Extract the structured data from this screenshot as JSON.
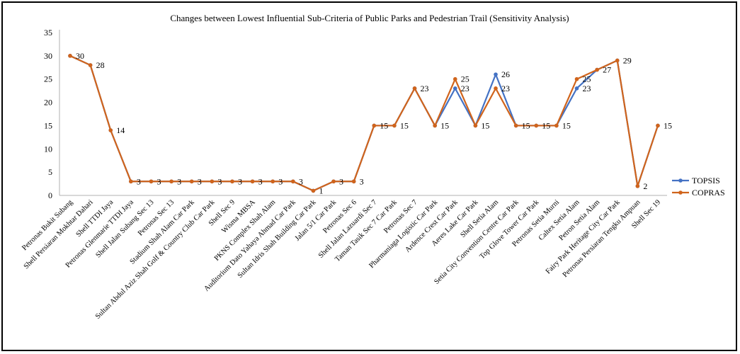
{
  "chart_data": {
    "type": "line",
    "title": "Changes between Lowest Influential Sub-Criteria of Public Parks and Pedestrian Trail (Sensitivity Analysis)",
    "xlabel": "",
    "ylabel": "",
    "ylim": [
      0,
      35
    ],
    "yticks": [
      0,
      5,
      10,
      15,
      20,
      25,
      30,
      35
    ],
    "grid": false,
    "legend_position": "right",
    "categories": [
      "Petronas Bukit Subang",
      "Shell Persiaran Mokhtar Dahari",
      "Shell TTDI Jaya",
      "Petronas Glenmarie TTDI Jaya",
      "Shell Jalan Subang Sec 13",
      "Petronas Sec 13",
      "Stadium Shah Alam Car Park",
      "Sultan Abdul Aziz Shah Golf & Country Club Car Park",
      "Shell Sec 9",
      "Wisma MBSA",
      "PKNS Complex Shah Alam",
      "Auditorium Dato Yahaya Ahmad Car Park",
      "Sultan Idris Shah Building Car Park",
      "Jalan 5/1 Car Park",
      "Petronas Sec 6",
      "Shell Jalan Lazuardi Sec 7",
      "Taman Tasik Sec 7 Car Park",
      "Petronas Sec 7",
      "Pharmaniaga Logistic Car Park",
      "Ardence Crest Car Park",
      "Aeres Lake Car Park",
      "Shell Setia Alam",
      "Setia City Convention Centre Car Park",
      "Top Glove Tower Car Park",
      "Petronas Setia Murni",
      "Caltex Setia Alam",
      "Petron Setia Alam",
      "Fairy Park Heritage City Car Park",
      "Petronas Persiaran Tengku Ampuan",
      "Shell Sec 19"
    ],
    "series": [
      {
        "name": "TOPSIS",
        "color": "#4472c4",
        "values": [
          30,
          28,
          14,
          3,
          3,
          3,
          3,
          3,
          3,
          3,
          3,
          3,
          1,
          3,
          3,
          15,
          15,
          23,
          15,
          23,
          15,
          26,
          15,
          15,
          15,
          23,
          27,
          29,
          2,
          15
        ]
      },
      {
        "name": "COPRAS",
        "color": "#d0641c",
        "values": [
          30,
          28,
          14,
          3,
          3,
          3,
          3,
          3,
          3,
          3,
          3,
          3,
          1,
          3,
          3,
          15,
          15,
          23,
          15,
          25,
          15,
          23,
          15,
          15,
          15,
          25,
          27,
          29,
          2,
          15
        ]
      }
    ],
    "data_labels": [
      {
        "index": 0,
        "text": "30"
      },
      {
        "index": 1,
        "text": "28"
      },
      {
        "index": 2,
        "text": "14"
      },
      {
        "index": 3,
        "text": "3"
      },
      {
        "index": 4,
        "text": "3"
      },
      {
        "index": 5,
        "text": "3"
      },
      {
        "index": 6,
        "text": "3"
      },
      {
        "index": 7,
        "text": "3"
      },
      {
        "index": 8,
        "text": "3"
      },
      {
        "index": 9,
        "text": "3"
      },
      {
        "index": 10,
        "text": "3"
      },
      {
        "index": 11,
        "text": "3"
      },
      {
        "index": 12,
        "text": "1"
      },
      {
        "index": 13,
        "text": "3"
      },
      {
        "index": 14,
        "text": "3"
      },
      {
        "index": 15,
        "text": "15"
      },
      {
        "index": 16,
        "text": "15"
      },
      {
        "index": 17,
        "text": "23"
      },
      {
        "index": 18,
        "text": "15"
      },
      {
        "index": 19,
        "text": "25"
      },
      {
        "index": 19,
        "text": "23"
      },
      {
        "index": 20,
        "text": "15"
      },
      {
        "index": 21,
        "text": "26"
      },
      {
        "index": 21,
        "text": "23"
      },
      {
        "index": 22,
        "text": "15"
      },
      {
        "index": 23,
        "text": "15"
      },
      {
        "index": 24,
        "text": "15"
      },
      {
        "index": 25,
        "text": "25"
      },
      {
        "index": 25,
        "text": "23"
      },
      {
        "index": 26,
        "text": "27"
      },
      {
        "index": 27,
        "text": "29"
      },
      {
        "index": 28,
        "text": "2"
      },
      {
        "index": 29,
        "text": "15"
      }
    ]
  }
}
